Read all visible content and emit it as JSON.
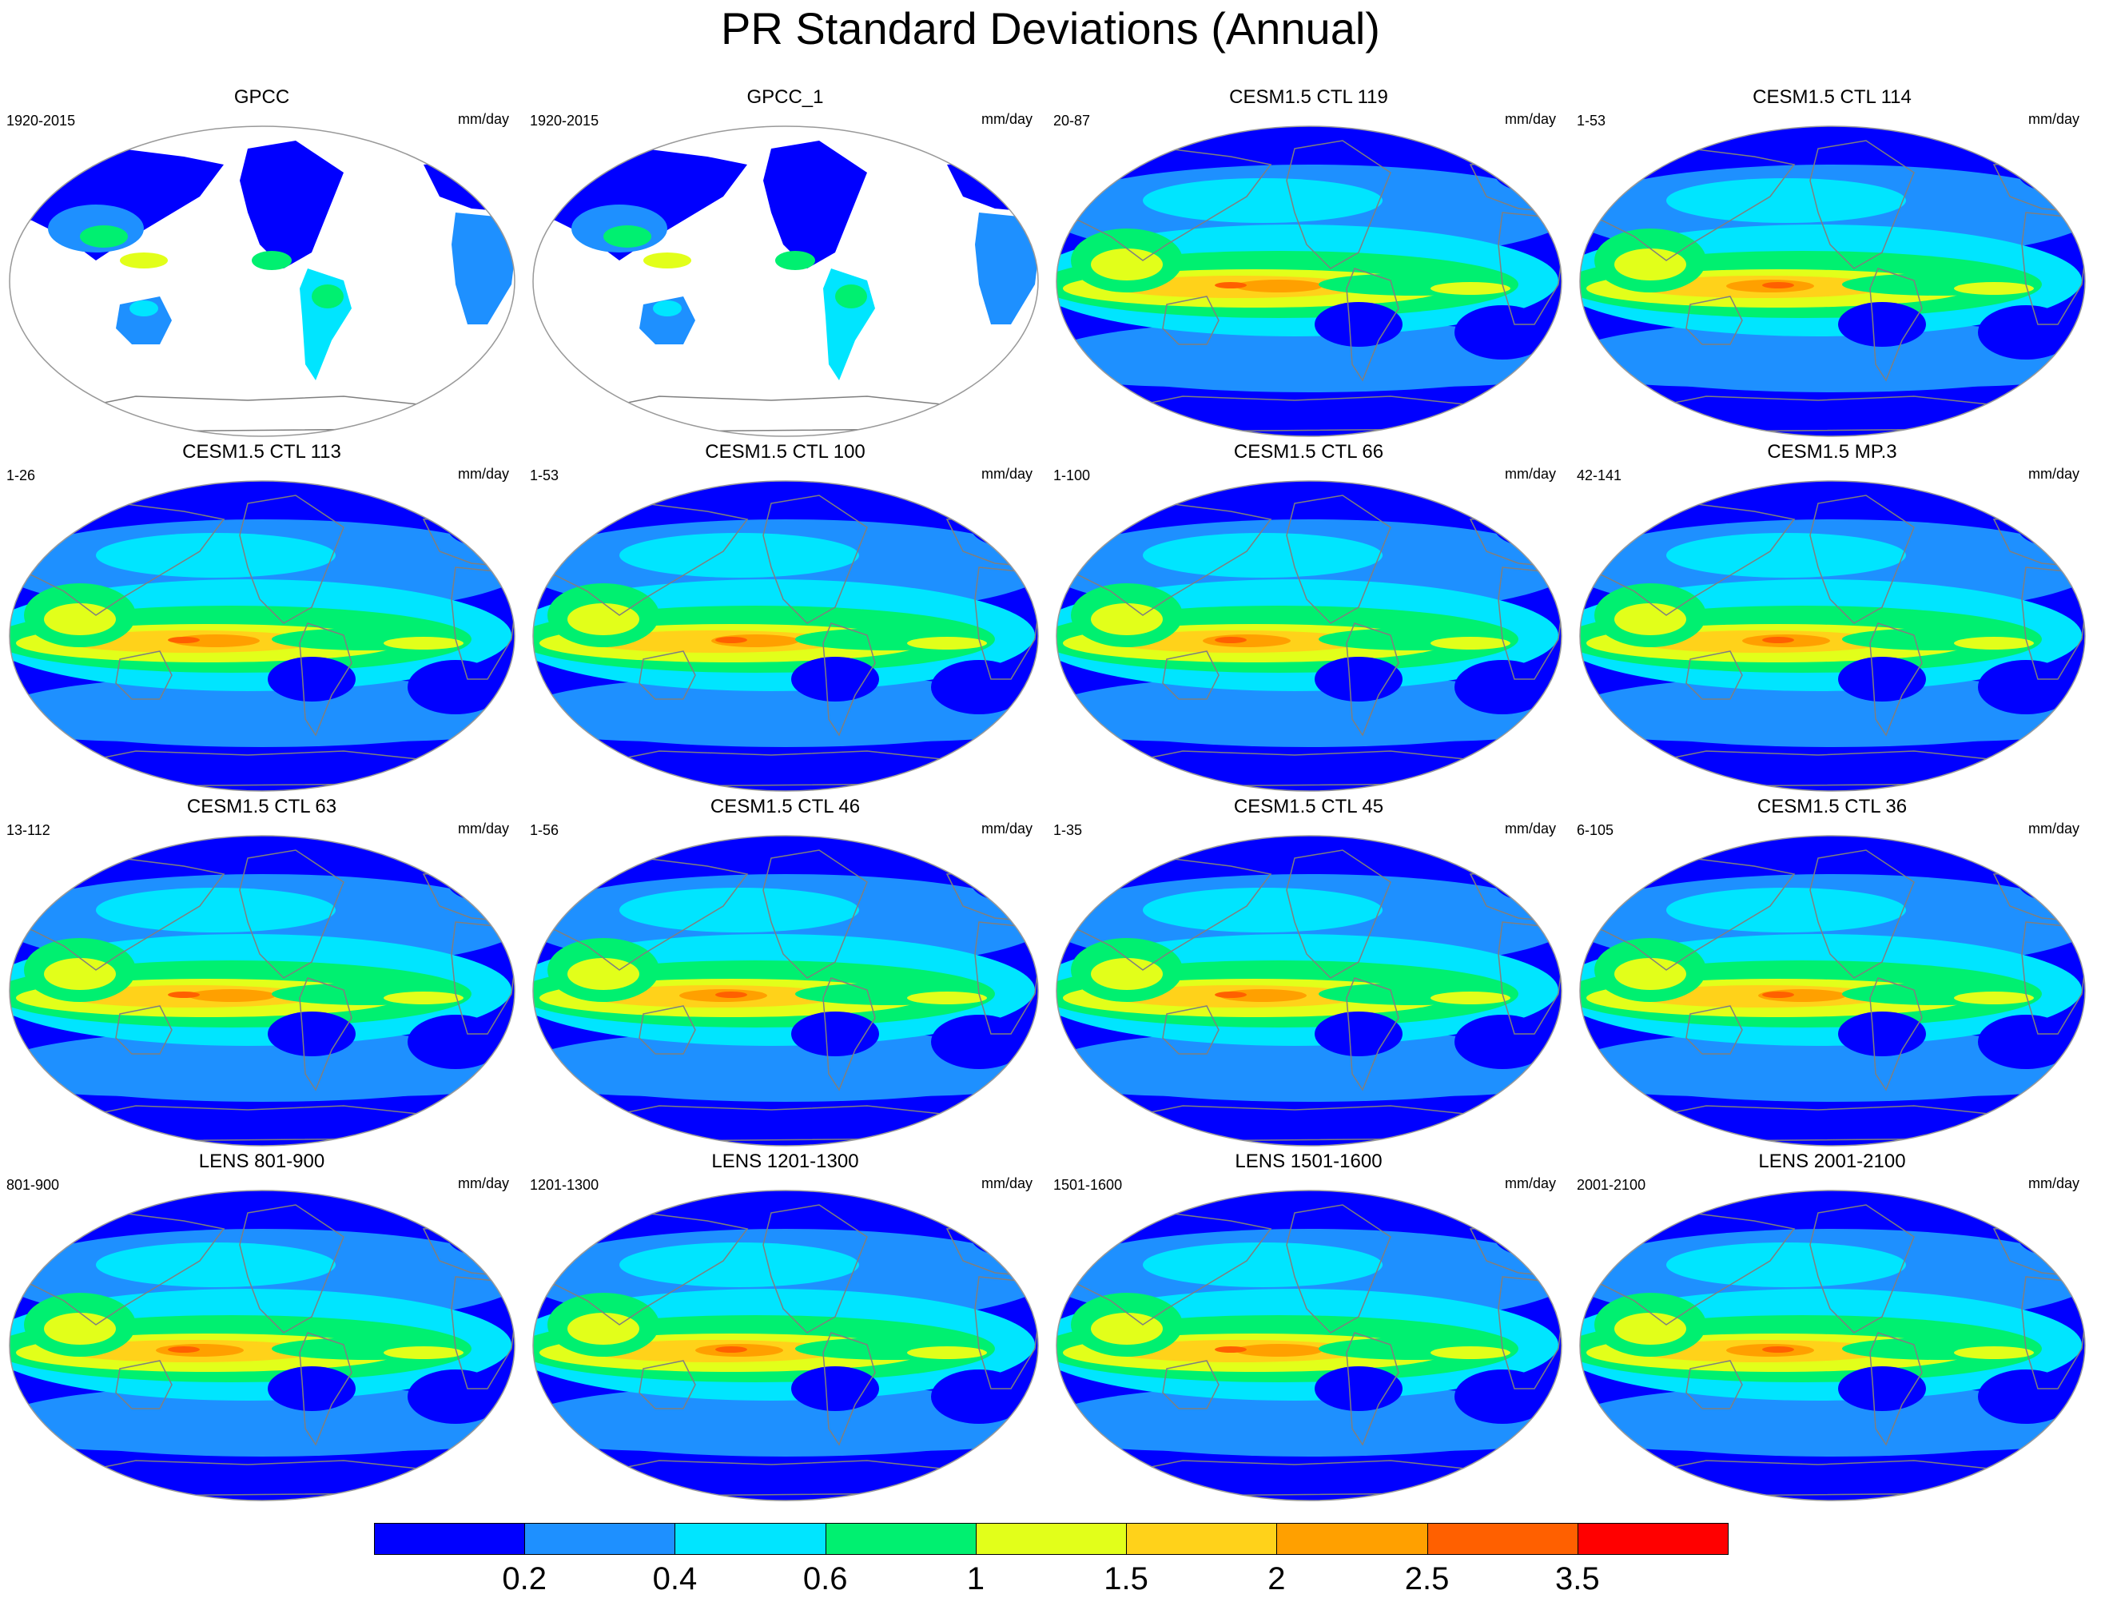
{
  "title": "PR Standard Deviations (Annual)",
  "unit_label": "mm/day",
  "panels": [
    {
      "name": "GPCC",
      "period": "1920-2015",
      "type": "observed"
    },
    {
      "name": "GPCC_1",
      "period": "1920-2015",
      "type": "observed"
    },
    {
      "name": "CESM1.5 CTL 119",
      "period": "20-87",
      "type": "model"
    },
    {
      "name": "CESM1.5 CTL 114",
      "period": "1-53",
      "type": "model"
    },
    {
      "name": "CESM1.5 CTL 113",
      "period": "1-26",
      "type": "model"
    },
    {
      "name": "CESM1.5 CTL 100",
      "period": "1-53",
      "type": "model"
    },
    {
      "name": "CESM1.5 CTL 66",
      "period": "1-100",
      "type": "model"
    },
    {
      "name": "CESM1.5 MP.3",
      "period": "42-141",
      "type": "model"
    },
    {
      "name": "CESM1.5 CTL 63",
      "period": "13-112",
      "type": "model"
    },
    {
      "name": "CESM1.5 CTL 46",
      "period": "1-56",
      "type": "model"
    },
    {
      "name": "CESM1.5 CTL 45",
      "period": "1-35",
      "type": "model"
    },
    {
      "name": "CESM1.5 CTL 36",
      "period": "6-105",
      "type": "model"
    },
    {
      "name": "LENS 801-900",
      "period": "801-900",
      "type": "model"
    },
    {
      "name": "LENS 1201-1300",
      "period": "1201-1300",
      "type": "model"
    },
    {
      "name": "LENS 1501-1600",
      "period": "1501-1600",
      "type": "model"
    },
    {
      "name": "LENS 2001-2100",
      "period": "2001-2100",
      "type": "model"
    }
  ],
  "colorbar": {
    "colors": [
      "#0000ff",
      "#1e90ff",
      "#00e5ff",
      "#00f070",
      "#e2ff1a",
      "#ffd21a",
      "#ffa000",
      "#ff6000",
      "#ff0000"
    ],
    "labels": [
      "0.2",
      "0.4",
      "0.6",
      "1",
      "1.5",
      "2",
      "2.5",
      "3.5"
    ]
  },
  "map_colors": {
    "land_outline": "#7f7f7f",
    "map_border": "#999999"
  }
}
